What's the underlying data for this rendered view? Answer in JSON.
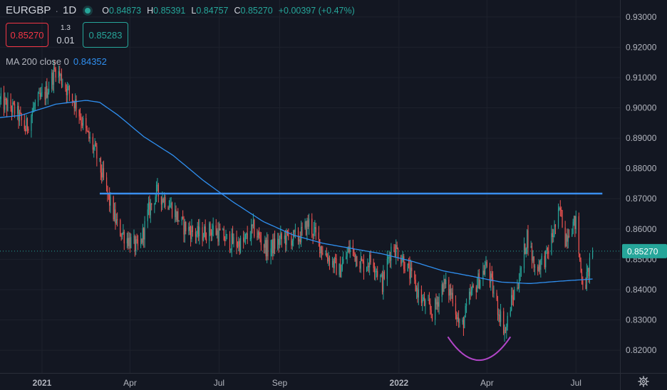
{
  "legend": {
    "symbol": "EURGBP",
    "separator": "·",
    "interval": "1D",
    "open_label": "O",
    "open_value": "0.84873",
    "high_label": "H",
    "high_value": "0.85391",
    "low_label": "L",
    "low_value": "0.84757",
    "close_label": "C",
    "close_value": "0.85270",
    "change": "+0.00397 (+0.47%)"
  },
  "trade": {
    "sell_price": "0.85270",
    "spread_top": "1.3",
    "spread_bottom": "0.01",
    "buy_price": "0.85283"
  },
  "indicator": {
    "label": "MA 200 close 0",
    "value": "0.84352"
  },
  "colors": {
    "background": "#131722",
    "up": "#26a69a",
    "down": "#ef5350",
    "ma": "#2f8ff0",
    "resistance": "#3a8fef",
    "cup": "#b246c8",
    "price_label_bg": "#26a69a",
    "text": "#b2b5be"
  },
  "chart_data": {
    "type": "candlestick",
    "symbol": "EURGBP",
    "interval": "1D",
    "x_ticks": [
      "2021",
      "Apr",
      "Jul",
      "Sep",
      "2022",
      "Apr",
      "Jul"
    ],
    "y_ticks": [
      "0.93000",
      "0.92000",
      "0.91000",
      "0.90000",
      "0.89000",
      "0.88000",
      "0.87000",
      "0.86000",
      "0.85000",
      "0.84000",
      "0.83000",
      "0.82000"
    ],
    "ylim": [
      0.8125,
      0.9356
    ],
    "xlim": [
      "2020-11-19",
      "2022-08-15"
    ],
    "last_price": "0.85270",
    "price_path": [
      [
        "2020-11-19",
        0.902
      ],
      [
        "2020-12-05",
        0.899
      ],
      [
        "2020-12-15",
        0.893
      ],
      [
        "2020-12-25",
        0.901
      ],
      [
        "2021-01-05",
        0.905
      ],
      [
        "2021-01-15",
        0.913
      ],
      [
        "2021-01-25",
        0.907
      ],
      [
        "2021-02-05",
        0.901
      ],
      [
        "2021-02-15",
        0.892
      ],
      [
        "2021-02-25",
        0.885
      ],
      [
        "2021-03-05",
        0.876
      ],
      [
        "2021-03-10",
        0.87
      ],
      [
        "2021-03-20",
        0.86
      ],
      [
        "2021-04-01",
        0.856
      ],
      [
        "2021-04-10",
        0.853
      ],
      [
        "2021-04-20",
        0.866
      ],
      [
        "2021-04-28",
        0.872
      ],
      [
        "2021-05-10",
        0.869
      ],
      [
        "2021-05-25",
        0.861
      ],
      [
        "2021-06-10",
        0.858
      ],
      [
        "2021-06-25",
        0.86
      ],
      [
        "2021-07-10",
        0.856
      ],
      [
        "2021-07-25",
        0.855
      ],
      [
        "2021-08-05",
        0.86
      ],
      [
        "2021-08-20",
        0.853
      ],
      [
        "2021-09-05",
        0.857
      ],
      [
        "2021-09-20",
        0.857
      ],
      [
        "2021-10-01",
        0.862
      ],
      [
        "2021-10-15",
        0.853
      ],
      [
        "2021-11-01",
        0.846
      ],
      [
        "2021-11-12",
        0.854
      ],
      [
        "2021-11-25",
        0.848
      ],
      [
        "2021-12-05",
        0.85
      ],
      [
        "2021-12-15",
        0.842
      ],
      [
        "2021-12-25",
        0.855
      ],
      [
        "2022-01-05",
        0.85
      ],
      [
        "2022-01-15",
        0.843
      ],
      [
        "2022-01-25",
        0.836
      ],
      [
        "2022-02-05",
        0.832
      ],
      [
        "2022-02-15",
        0.842
      ],
      [
        "2022-02-25",
        0.838
      ],
      [
        "2022-03-05",
        0.826
      ],
      [
        "2022-03-15",
        0.838
      ],
      [
        "2022-03-25",
        0.844
      ],
      [
        "2022-04-01",
        0.848
      ],
      [
        "2022-04-10",
        0.836
      ],
      [
        "2022-04-20",
        0.826
      ],
      [
        "2022-04-25",
        0.835
      ],
      [
        "2022-05-05",
        0.845
      ],
      [
        "2022-05-12",
        0.858
      ],
      [
        "2022-05-20",
        0.847
      ],
      [
        "2022-06-01",
        0.851
      ],
      [
        "2022-06-08",
        0.859
      ],
      [
        "2022-06-15",
        0.866
      ],
      [
        "2022-06-20",
        0.857
      ],
      [
        "2022-06-25",
        0.861
      ],
      [
        "2022-07-01",
        0.862
      ],
      [
        "2022-07-06",
        0.846
      ],
      [
        "2022-07-10",
        0.841
      ],
      [
        "2022-07-15",
        0.848
      ],
      [
        "2022-07-18",
        0.8527
      ]
    ],
    "ma200": [
      [
        "2020-11-19",
        0.8968
      ],
      [
        "2020-12-10",
        0.8975
      ],
      [
        "2021-01-15",
        0.9012
      ],
      [
        "2021-02-15",
        0.9025
      ],
      [
        "2021-03-01",
        0.9018
      ],
      [
        "2021-03-20",
        0.8975
      ],
      [
        "2021-04-15",
        0.8905
      ],
      [
        "2021-05-15",
        0.8843
      ],
      [
        "2021-06-15",
        0.876
      ],
      [
        "2021-07-15",
        0.869
      ],
      [
        "2021-08-15",
        0.8625
      ],
      [
        "2021-09-15",
        0.858
      ],
      [
        "2021-10-15",
        0.8553
      ],
      [
        "2021-11-15",
        0.8535
      ],
      [
        "2021-12-15",
        0.8518
      ],
      [
        "2022-01-15",
        0.8493
      ],
      [
        "2022-02-15",
        0.8462
      ],
      [
        "2022-03-15",
        0.8445
      ],
      [
        "2022-04-15",
        0.8425
      ],
      [
        "2022-05-15",
        0.842
      ],
      [
        "2022-06-15",
        0.8428
      ],
      [
        "2022-07-18",
        0.8435
      ]
    ],
    "annotations": [
      {
        "type": "horizontal_line",
        "price": 0.8717,
        "from": "2021-03-01",
        "to": "2022-07-28"
      },
      {
        "type": "arc",
        "from": "2022-02-20",
        "to": "2022-04-25",
        "top_price": 0.8244,
        "bottom_price": 0.8167
      }
    ],
    "grid": true
  }
}
